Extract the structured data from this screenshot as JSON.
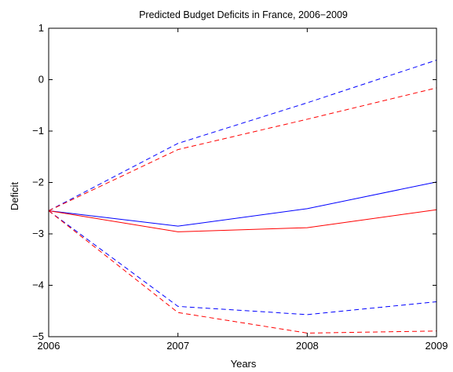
{
  "chart_data": {
    "type": "line",
    "title": "Predicted Budget Deficits in France, 2006−2009",
    "xlabel": "Years",
    "ylabel": "Deficit",
    "xlim": [
      2006,
      2009
    ],
    "ylim": [
      -5,
      1
    ],
    "x": [
      2006,
      2007,
      2008,
      2009
    ],
    "xticks": [
      2006,
      2007,
      2008,
      2009
    ],
    "xtick_labels": [
      "2006",
      "2007",
      "2008",
      "2009"
    ],
    "yticks": [
      -5,
      -4,
      -3,
      -2,
      -1,
      0,
      1
    ],
    "ytick_labels": [
      "−5",
      "−4",
      "−3",
      "−2",
      "−1",
      "0",
      "1"
    ],
    "grid": false,
    "legend": false,
    "series": [
      {
        "values": [
          -2.55,
          -2.85,
          -2.51,
          -1.99
        ],
        "color": "#0000ff",
        "dash": "solid"
      },
      {
        "values": [
          -2.55,
          -2.96,
          -2.88,
          -2.53
        ],
        "color": "#ff0000",
        "dash": "solid"
      },
      {
        "values": [
          -2.55,
          -1.24,
          -0.45,
          0.38
        ],
        "color": "#0000ff",
        "dash": "dashed"
      },
      {
        "values": [
          -2.55,
          -1.36,
          -0.77,
          -0.16
        ],
        "color": "#ff0000",
        "dash": "dashed"
      },
      {
        "values": [
          -2.55,
          -4.41,
          -4.57,
          -4.32
        ],
        "color": "#0000ff",
        "dash": "dashed"
      },
      {
        "values": [
          -2.55,
          -4.53,
          -4.93,
          -4.89
        ],
        "color": "#ff0000",
        "dash": "dashed"
      }
    ]
  }
}
